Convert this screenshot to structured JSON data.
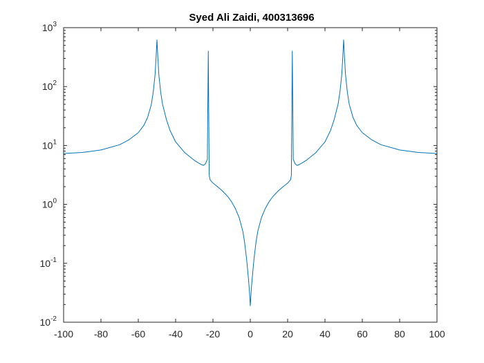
{
  "chart_data": {
    "type": "line",
    "title": "Syed Ali Zaidi, 400313696",
    "xlabel": "",
    "ylabel": "",
    "xlim": [
      -100,
      100
    ],
    "ylim": [
      0.01,
      1000
    ],
    "yscale": "log",
    "grid": false,
    "xticks": [
      -100,
      -80,
      -60,
      -40,
      -20,
      0,
      20,
      40,
      60,
      80,
      100
    ],
    "xtick_labels": [
      "-100",
      "-80",
      "-60",
      "-40",
      "-20",
      "0",
      "20",
      "40",
      "60",
      "80",
      "100"
    ],
    "yticks": [
      0.01,
      0.1,
      1,
      10,
      100,
      1000
    ],
    "ytick_labels": [
      {
        "base": "10",
        "exp": "-2"
      },
      {
        "base": "10",
        "exp": "-1"
      },
      {
        "base": "10",
        "exp": "0"
      },
      {
        "base": "10",
        "exp": "1"
      },
      {
        "base": "10",
        "exp": "2"
      },
      {
        "base": "10",
        "exp": "3"
      }
    ],
    "series": [
      {
        "color": "#0072bd",
        "x": [
          -100,
          -90,
          -80,
          -70,
          -65,
          -60,
          -57,
          -55,
          -53,
          -52,
          -51,
          -50.5,
          -50,
          -49.5,
          -49,
          -48,
          -47,
          -45,
          -43,
          -40,
          -35,
          -30,
          -28,
          -26,
          -25,
          -24,
          -23,
          -22.5,
          -22,
          -21.5,
          -21,
          -20,
          -18,
          -15,
          -12,
          -10,
          -8,
          -6,
          -4,
          -3,
          -2,
          -1,
          -0.5,
          0,
          0.5,
          1,
          2,
          3,
          4,
          6,
          8,
          10,
          12,
          15,
          18,
          20,
          21,
          21.5,
          22,
          22.5,
          23,
          24,
          25,
          26,
          28,
          30,
          35,
          40,
          43,
          45,
          47,
          48,
          49,
          49.5,
          50,
          50.5,
          51,
          52,
          53,
          55,
          57,
          60,
          65,
          70,
          80,
          90,
          100
        ],
        "y": [
          7.3,
          7.6,
          8.4,
          10.3,
          12.5,
          16.5,
          22,
          30,
          50,
          80,
          160,
          300,
          620,
          300,
          160,
          80,
          50,
          28,
          18,
          11.5,
          7.5,
          5.6,
          5.1,
          4.7,
          4.6,
          4.9,
          5.8,
          400,
          3.1,
          2.6,
          2.5,
          2.3,
          2.05,
          1.7,
          1.35,
          1.1,
          0.85,
          0.6,
          0.35,
          0.22,
          0.12,
          0.055,
          0.035,
          0.019,
          0.035,
          0.055,
          0.12,
          0.22,
          0.35,
          0.6,
          0.85,
          1.1,
          1.35,
          1.7,
          2.05,
          2.3,
          2.5,
          2.6,
          3.1,
          400,
          5.8,
          4.9,
          4.6,
          4.7,
          5.1,
          5.6,
          7.5,
          11.5,
          18,
          28,
          50,
          80,
          160,
          300,
          620,
          300,
          160,
          80,
          50,
          30,
          22,
          16.5,
          12.5,
          10.3,
          8.4,
          7.6,
          7.3
        ]
      }
    ]
  }
}
